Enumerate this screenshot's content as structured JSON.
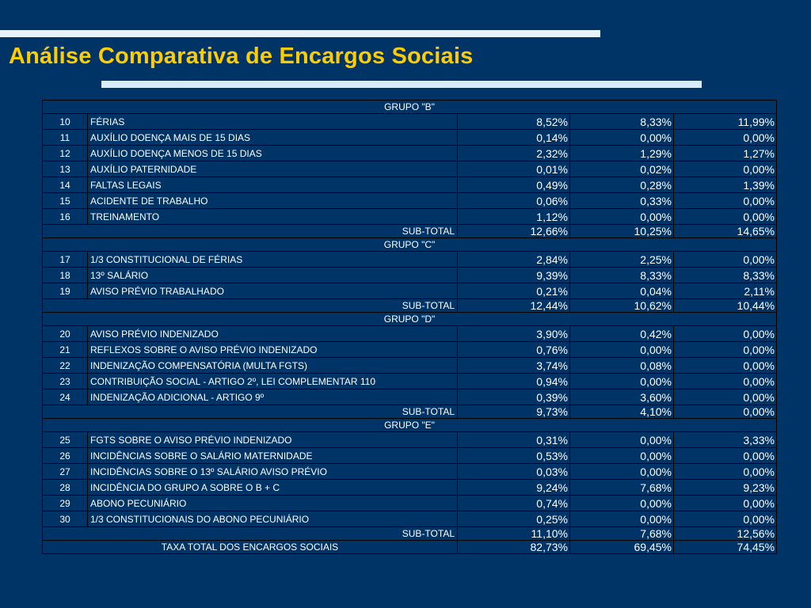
{
  "slide": {
    "title": "Análise Comparativa de Encargos Sociais"
  },
  "groups": [
    {
      "label": "GRUPO \"B\"",
      "items": [
        {
          "num": "10",
          "label": "FÉRIAS",
          "v1": "8,52%",
          "v2": "8,33%",
          "v3": "11,99%"
        },
        {
          "num": "11",
          "label": "AUXÍLIO DOENÇA MAIS DE 15 DIAS",
          "v1": "0,14%",
          "v2": "0,00%",
          "v3": "0,00%"
        },
        {
          "num": "12",
          "label": "AUXÍLIO DOENÇA MENOS DE 15 DIAS",
          "v1": "2,32%",
          "v2": "1,29%",
          "v3": "1,27%"
        },
        {
          "num": "13",
          "label": "AUXÍLIO PATERNIDADE",
          "v1": "0,01%",
          "v2": "0,02%",
          "v3": "0,00%"
        },
        {
          "num": "14",
          "label": "FALTAS LEGAIS",
          "v1": "0,49%",
          "v2": "0,28%",
          "v3": "1,39%"
        },
        {
          "num": "15",
          "label": "ACIDENTE DE TRABALHO",
          "v1": "0,06%",
          "v2": "0,33%",
          "v3": "0,00%"
        },
        {
          "num": "16",
          "label": "TREINAMENTO",
          "v1": "1,12%",
          "v2": "0,00%",
          "v3": "0,00%"
        }
      ],
      "subtotal": {
        "label": "SUB-TOTAL",
        "v1": "12,66%",
        "v2": "10,25%",
        "v3": "14,65%"
      }
    },
    {
      "label": "GRUPO \"C\"",
      "items": [
        {
          "num": "17",
          "label": "1/3 CONSTITUCIONAL DE FÉRIAS",
          "v1": "2,84%",
          "v2": "2,25%",
          "v3": "0,00%"
        },
        {
          "num": "18",
          "label": "13º SALÁRIO",
          "v1": "9,39%",
          "v2": "8,33%",
          "v3": "8,33%"
        },
        {
          "num": "19",
          "label": "AVISO PRÉVIO TRABALHADO",
          "v1": "0,21%",
          "v2": "0,04%",
          "v3": "2,11%"
        }
      ],
      "subtotal": {
        "label": "SUB-TOTAL",
        "v1": "12,44%",
        "v2": "10,62%",
        "v3": "10,44%"
      }
    },
    {
      "label": "GRUPO \"D\"",
      "items": [
        {
          "num": "20",
          "label": "AVISO PRÉVIO INDENIZADO",
          "v1": "3,90%",
          "v2": "0,42%",
          "v3": "0,00%"
        },
        {
          "num": "21",
          "label": "REFLEXOS SOBRE O AVISO PRÉVIO INDENIZADO",
          "v1": "0,76%",
          "v2": "0,00%",
          "v3": "0,00%"
        },
        {
          "num": "22",
          "label": "INDENIZAÇÃO COMPENSATÓRIA (MULTA FGTS)",
          "v1": "3,74%",
          "v2": "0,08%",
          "v3": "0,00%"
        },
        {
          "num": "23",
          "label": "CONTRIBUIÇÃO SOCIAL - ARTIGO 2º, LEI COMPLEMENTAR 110",
          "v1": "0,94%",
          "v2": "0,00%",
          "v3": "0,00%"
        },
        {
          "num": "24",
          "label": "INDENIZAÇÃO ADICIONAL - ARTIGO 9º",
          "v1": "0,39%",
          "v2": "3,60%",
          "v3": "0,00%"
        }
      ],
      "subtotal": {
        "label": "SUB-TOTAL",
        "v1": "9,73%",
        "v2": "4,10%",
        "v3": "0,00%"
      }
    },
    {
      "label": "GRUPO \"E\"",
      "items": [
        {
          "num": "25",
          "label": "FGTS SOBRE O AVISO PRÉVIO INDENIZADO",
          "v1": "0,31%",
          "v2": "0,00%",
          "v3": "3,33%"
        },
        {
          "num": "26",
          "label": "INCIDÊNCIAS SOBRE O SALÁRIO MATERNIDADE",
          "v1": "0,53%",
          "v2": "0,00%",
          "v3": "0,00%"
        },
        {
          "num": "27",
          "label": "INCIDÊNCIAS SOBRE O 13º SALÁRIO AVISO PRÉVIO",
          "v1": "0,03%",
          "v2": "0,00%",
          "v3": "0,00%"
        },
        {
          "num": "28",
          "label": "INCIDÊNCIA DO GRUPO A SOBRE O B + C",
          "v1": "9,24%",
          "v2": "7,68%",
          "v3": "9,23%"
        },
        {
          "num": "29",
          "label": "ABONO PECUNIÁRIO",
          "v1": "0,74%",
          "v2": "0,00%",
          "v3": "0,00%"
        },
        {
          "num": "30",
          "label": "1/3 CONSTITUCIONAIS DO ABONO PECUNIÁRIO",
          "v1": "0,25%",
          "v2": "0,00%",
          "v3": "0,00%"
        }
      ],
      "subtotal": {
        "label": "SUB-TOTAL",
        "v1": "11,10%",
        "v2": "7,68%",
        "v3": "12,56%"
      }
    }
  ],
  "total": {
    "label": "TAXA TOTAL DOS ENCARGOS SOCIAIS",
    "v1": "82,73%",
    "v2": "69,45%",
    "v3": "74,45%"
  },
  "colors": {
    "background": "#003366",
    "title": "#ffcc00",
    "bar": "#e8f2fb",
    "text": "#ffffff"
  }
}
